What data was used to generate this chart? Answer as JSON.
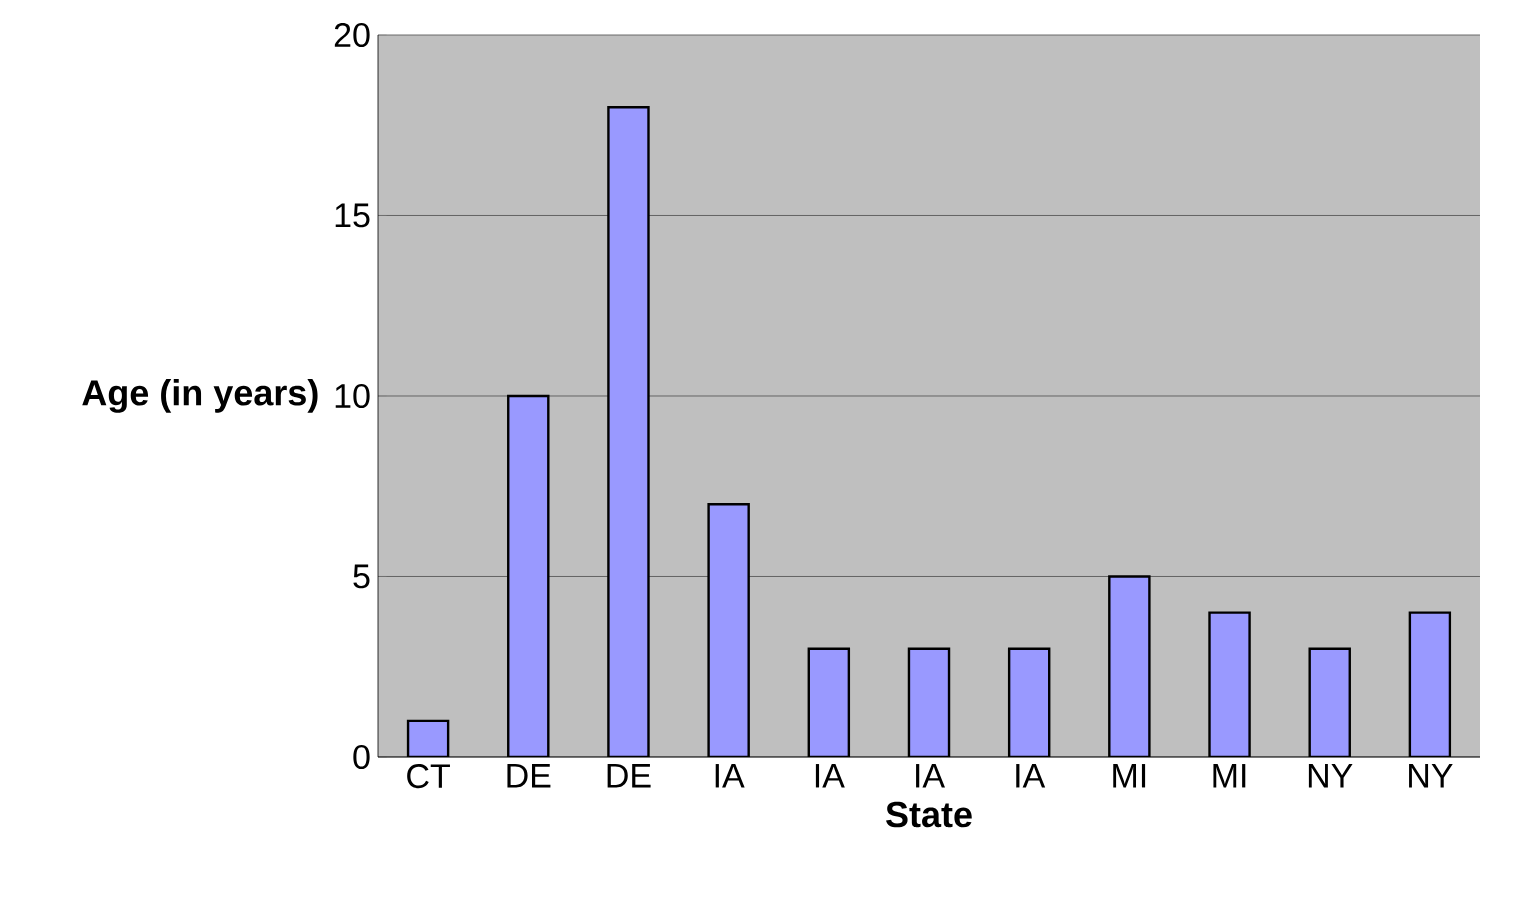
{
  "chart_data": {
    "type": "bar",
    "xlabel": "State",
    "ylabel": "Age (in years)",
    "categories": [
      "CT",
      "DE",
      "DE",
      "IA",
      "IA",
      "IA",
      "IA",
      "MI",
      "MI",
      "NY",
      "NY"
    ],
    "values": [
      1,
      10,
      18,
      7,
      3,
      3,
      3,
      5,
      4,
      3,
      4
    ],
    "color": "#9999ff",
    "ylim": [
      0,
      20
    ],
    "yticks": [
      0,
      5,
      10,
      15,
      20
    ],
    "grid": "y"
  }
}
